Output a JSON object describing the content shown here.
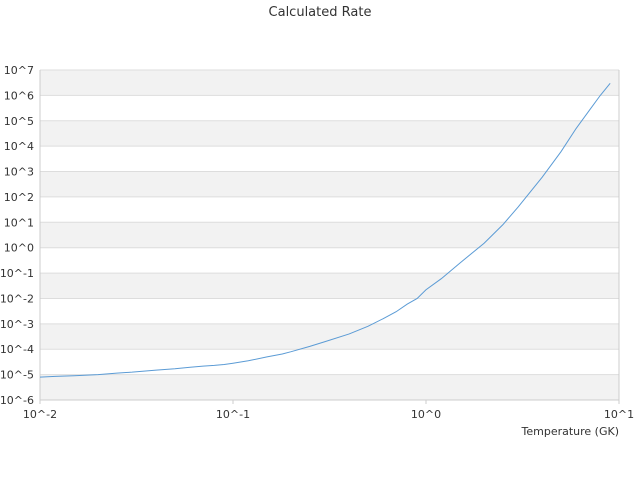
{
  "chart_data": {
    "type": "line",
    "title": "Calculated Rate",
    "xlabel": "Temperature (GK)",
    "ylabel": "",
    "x_scale": "log",
    "y_scale": "log",
    "xlim": [
      0.01,
      10
    ],
    "ylim": [
      1e-06,
      10000000.0
    ],
    "x_ticks": [
      {
        "value": 0.01,
        "label": "10^-2"
      },
      {
        "value": 0.1,
        "label": "10^-1"
      },
      {
        "value": 1,
        "label": "10^0"
      },
      {
        "value": 10,
        "label": "10^1"
      }
    ],
    "y_ticks": [
      {
        "value": 1e-06,
        "label": "10^-6"
      },
      {
        "value": 1e-05,
        "label": "10^-5"
      },
      {
        "value": 0.0001,
        "label": "10^-4"
      },
      {
        "value": 0.001,
        "label": "10^-3"
      },
      {
        "value": 0.01,
        "label": "10^-2"
      },
      {
        "value": 0.1,
        "label": "10^-1"
      },
      {
        "value": 1.0,
        "label": "10^0"
      },
      {
        "value": 10.0,
        "label": "10^1"
      },
      {
        "value": 100.0,
        "label": "10^2"
      },
      {
        "value": 1000.0,
        "label": "10^3"
      },
      {
        "value": 10000.0,
        "label": "10^4"
      },
      {
        "value": 100000.0,
        "label": "10^5"
      },
      {
        "value": 1000000.0,
        "label": "10^6"
      },
      {
        "value": 10000000.0,
        "label": "10^7"
      }
    ],
    "grid": "alternating horizontal bands",
    "legend": "none",
    "colors": {
      "line": "#5b9bd5",
      "band": "#f2f2f2",
      "grid": "#dddddd",
      "axis": "#cccccc",
      "text": "#333333"
    },
    "series": [
      {
        "x": [
          0.01,
          0.012,
          0.015,
          0.02,
          0.025,
          0.03,
          0.04,
          0.05,
          0.06,
          0.07,
          0.08,
          0.09,
          0.1,
          0.12,
          0.15,
          0.18,
          0.2,
          0.25,
          0.3,
          0.4,
          0.5,
          0.6,
          0.7,
          0.8,
          0.9,
          1.0,
          1.2,
          1.5,
          2.0,
          2.5,
          3.0,
          4.0,
          5.0,
          6.0,
          7.0,
          8.0,
          9.0
        ],
        "y": [
          8e-06,
          8.5e-06,
          9e-06,
          1e-05,
          1.15e-05,
          1.25e-05,
          1.5e-05,
          1.7e-05,
          1.95e-05,
          2.15e-05,
          2.3e-05,
          2.5e-05,
          2.8e-05,
          3.5e-05,
          5e-05,
          6.5e-05,
          8e-05,
          0.00013,
          0.0002,
          0.0004,
          0.0008,
          0.0016,
          0.003,
          0.006,
          0.01,
          0.022,
          0.06,
          0.25,
          1.5,
          8,
          40,
          600,
          6000,
          50000,
          250000,
          1000000,
          3000000
        ]
      }
    ]
  }
}
